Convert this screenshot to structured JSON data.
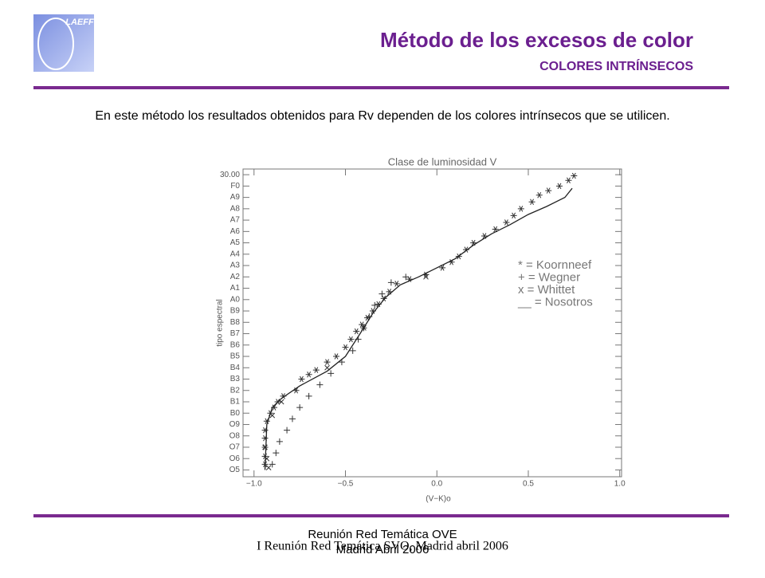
{
  "header": {
    "logo": "LAEFF",
    "title": "Método de los excesos de color",
    "subtitle": "COLORES INTRÍNSECOS"
  },
  "body": "En este método los resultados obtenidos para Rv dependen de los colores intrínsecos que se utilicen.",
  "chart_data": {
    "type": "scatter",
    "title": "Clase de luminosidad V",
    "x_label": "(V−K)o",
    "y_label": "tipo espectral",
    "xlim": [
      -1.06,
      1.01
    ],
    "ylim": [
      3.4,
      30.5
    ],
    "xticks": [
      {
        "value": -1,
        "label": "−1.0"
      },
      {
        "value": -0.5,
        "label": "−0.5"
      },
      {
        "value": 0,
        "label": "0.0"
      },
      0.5,
      {
        "value": 1,
        "label": "1.0"
      }
    ],
    "yticks": [
      {
        "value": 4,
        "label": "O5"
      },
      {
        "value": 5,
        "label": "O6"
      },
      {
        "value": 6,
        "label": "O7"
      },
      {
        "value": 7,
        "label": "O8"
      },
      {
        "value": 8,
        "label": "O9"
      },
      {
        "value": 9,
        "label": "B0"
      },
      {
        "value": 10,
        "label": "B1"
      },
      {
        "value": 11,
        "label": "B2"
      },
      {
        "value": 12,
        "label": "B3"
      },
      {
        "value": 13,
        "label": "B4"
      },
      {
        "value": 14,
        "label": "B5"
      },
      {
        "value": 15,
        "label": "B6"
      },
      {
        "value": 16,
        "label": "B7"
      },
      {
        "value": 17,
        "label": "B8"
      },
      {
        "value": 18,
        "label": "B9"
      },
      {
        "value": 19,
        "label": "A0"
      },
      {
        "value": 20,
        "label": "A1"
      },
      {
        "value": 21,
        "label": "A2"
      },
      {
        "value": 22,
        "label": "A3"
      },
      {
        "value": 23,
        "label": "A4"
      },
      {
        "value": 24,
        "label": "A5"
      },
      {
        "value": 25,
        "label": "A6"
      },
      {
        "value": 26,
        "label": "A7"
      },
      {
        "value": 27,
        "label": "A8"
      },
      {
        "value": 28,
        "label": "A9"
      },
      {
        "value": 29,
        "label": "F0"
      },
      {
        "value": 30,
        "label": "30.00"
      }
    ],
    "grid": false,
    "legend": "right",
    "series": [
      {
        "name": "* = Koornneef",
        "marker": "star",
        "color": "#333333",
        "x": [
          -0.94,
          -0.94,
          -0.94,
          -0.94,
          -0.94,
          -0.93,
          -0.91,
          -0.89,
          -0.87,
          -0.84,
          -0.77,
          -0.74,
          -0.7,
          -0.66,
          -0.6,
          -0.55,
          -0.5,
          -0.47,
          -0.44,
          -0.41,
          -0.38,
          -0.35,
          -0.32,
          -0.29,
          -0.26,
          -0.22,
          -0.15,
          -0.06,
          0.03,
          0.08,
          0.12,
          0.16,
          0.2,
          0.26,
          0.32,
          0.38,
          0.42,
          0.46,
          0.52,
          0.56,
          0.61,
          0.67,
          0.72,
          0.75
        ],
        "values": [
          4.5,
          5.2,
          6,
          6.8,
          7.5,
          8.3,
          9,
          9.5,
          10,
          10.5,
          11,
          12,
          12.4,
          12.8,
          13.5,
          14,
          14.8,
          15.5,
          16.2,
          16.8,
          17.4,
          18,
          18.6,
          19.1,
          19.7,
          20.4,
          20.8,
          21.2,
          21.8,
          22.3,
          22.8,
          23.4,
          24,
          24.6,
          25.2,
          25.8,
          26.4,
          27,
          27.6,
          28.2,
          28.6,
          29,
          29.5,
          29.9
        ]
      },
      {
        "name": "+ = Wegner",
        "marker": "plus",
        "color": "#333333",
        "x": [
          -0.9,
          -0.88,
          -0.86,
          -0.82,
          -0.79,
          -0.75,
          -0.7,
          -0.64,
          -0.58,
          -0.52,
          -0.46,
          -0.43,
          -0.4,
          -0.37,
          -0.34,
          -0.3,
          -0.25,
          -0.17
        ],
        "values": [
          4.5,
          5.5,
          6.5,
          7.5,
          8.5,
          9.5,
          10.5,
          11.5,
          12.5,
          13.5,
          14.5,
          15.5,
          16.5,
          17.5,
          18.5,
          19.5,
          20.5,
          21
        ]
      },
      {
        "name": "x = Whittet",
        "marker": "x",
        "color": "#333333",
        "x": [
          -0.92,
          -0.93,
          -0.94,
          -0.9,
          -0.85,
          -0.6,
          -0.4,
          -0.06
        ],
        "values": [
          4.2,
          5,
          6,
          8.8,
          10,
          13,
          16.5,
          21
        ]
      },
      {
        "name": "__ = Nosotros",
        "marker": "line",
        "color": "#222222",
        "x": [
          -0.94,
          -0.93,
          -0.9,
          -0.85,
          -0.75,
          -0.6,
          -0.5,
          -0.42,
          -0.35,
          -0.28,
          -0.2,
          -0.1,
          0,
          0.1,
          0.2,
          0.3,
          0.4,
          0.5,
          0.6,
          0.7,
          0.74
        ],
        "values": [
          4,
          8,
          9.5,
          10.3,
          11.4,
          12.7,
          14,
          16,
          17.8,
          19.2,
          20.3,
          21,
          21.8,
          22.6,
          23.8,
          24.8,
          25.6,
          26.5,
          27.2,
          28,
          28.8
        ]
      }
    ]
  },
  "footer": {
    "line1": "Reunión Red Temática OVE",
    "line2": "Madrid Abril 2006",
    "overlay": "I Reunión Red Temática SVO, Madrid abril 2006"
  }
}
